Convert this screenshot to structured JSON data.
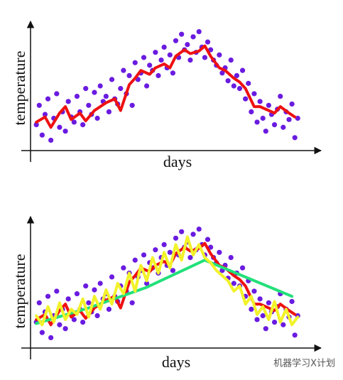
{
  "chart_data": [
    {
      "type": "scatter",
      "xlabel": "days",
      "ylabel": "temperature",
      "xlim": [
        0,
        100
      ],
      "ylim": [
        0,
        100
      ],
      "series": [
        {
          "type": "scatter",
          "color": "#6a1be0",
          "x": [
            2,
            3,
            4,
            5,
            6,
            7,
            8,
            9,
            10,
            11,
            12,
            13,
            14,
            15,
            16,
            17,
            18,
            19,
            20,
            21,
            22,
            23,
            24,
            25,
            26,
            27,
            28,
            29,
            30,
            31,
            32,
            33,
            34,
            35,
            36,
            37,
            38,
            39,
            40,
            41,
            42,
            43,
            44,
            45,
            46,
            47,
            48,
            49,
            50,
            51,
            52,
            53,
            54,
            55,
            56,
            57,
            58,
            59,
            60,
            61,
            62,
            63,
            64,
            65,
            66,
            67,
            68,
            69,
            70,
            71,
            72,
            73,
            74,
            75,
            76,
            77,
            78,
            79,
            80,
            81,
            82,
            83,
            84,
            85,
            86,
            87,
            88,
            89,
            90,
            91,
            92
          ],
          "values": [
            20,
            35,
            12,
            28,
            40,
            8,
            25,
            44,
            18,
            30,
            15,
            38,
            26,
            22,
            42,
            30,
            20,
            48,
            35,
            28,
            45,
            25,
            50,
            38,
            42,
            30,
            55,
            40,
            36,
            48,
            62,
            44,
            58,
            35,
            68,
            55,
            60,
            72,
            50,
            66,
            62,
            76,
            58,
            70,
            80,
            64,
            74,
            60,
            85,
            72,
            90,
            78,
            82,
            70,
            88,
            76,
            92,
            80,
            72,
            84,
            78,
            70,
            66,
            74,
            60,
            64,
            54,
            70,
            50,
            58,
            48,
            62,
            40,
            52,
            30,
            44,
            22,
            38,
            25,
            15,
            35,
            28,
            20,
            32,
            42,
            18,
            30,
            24,
            36,
            10,
            25
          ]
        },
        {
          "type": "line",
          "color": "#ee1111",
          "x": [
            2,
            5,
            7,
            10,
            12,
            14,
            17,
            19,
            22,
            24,
            26,
            29,
            31,
            34,
            36,
            38,
            41,
            43,
            46,
            48,
            50,
            53,
            55,
            58,
            60,
            62,
            65,
            67,
            70,
            72,
            74,
            77,
            79,
            82,
            84,
            86,
            89,
            91
          ],
          "values": [
            22,
            26,
            18,
            29,
            34,
            24,
            29,
            23,
            31,
            34,
            37,
            40,
            31,
            51,
            56,
            62,
            59,
            64,
            67,
            64,
            73,
            78,
            75,
            77,
            81,
            73,
            64,
            62,
            56,
            53,
            48,
            34,
            34,
            31,
            29,
            34,
            29,
            26
          ]
        }
      ]
    },
    {
      "type": "scatter",
      "xlabel": "days",
      "ylabel": "temperature",
      "xlim": [
        0,
        100
      ],
      "ylim": [
        0,
        100
      ],
      "series": [
        {
          "type": "scatter",
          "color": "#6a1be0",
          "x": [
            2,
            3,
            4,
            5,
            6,
            7,
            8,
            9,
            10,
            11,
            12,
            13,
            14,
            15,
            16,
            17,
            18,
            19,
            20,
            21,
            22,
            23,
            24,
            25,
            26,
            27,
            28,
            29,
            30,
            31,
            32,
            33,
            34,
            35,
            36,
            37,
            38,
            39,
            40,
            41,
            42,
            43,
            44,
            45,
            46,
            47,
            48,
            49,
            50,
            51,
            52,
            53,
            54,
            55,
            56,
            57,
            58,
            59,
            60,
            61,
            62,
            63,
            64,
            65,
            66,
            67,
            68,
            69,
            70,
            71,
            72,
            73,
            74,
            75,
            76,
            77,
            78,
            79,
            80,
            81,
            82,
            83,
            84,
            85,
            86,
            87,
            88,
            89,
            90,
            91,
            92
          ],
          "values": [
            20,
            35,
            12,
            28,
            40,
            8,
            25,
            44,
            18,
            30,
            15,
            38,
            26,
            22,
            42,
            30,
            20,
            48,
            35,
            28,
            45,
            25,
            50,
            38,
            42,
            30,
            55,
            40,
            36,
            48,
            62,
            44,
            58,
            35,
            68,
            55,
            60,
            72,
            50,
            66,
            62,
            76,
            58,
            70,
            80,
            64,
            74,
            60,
            85,
            72,
            90,
            78,
            82,
            70,
            88,
            76,
            92,
            80,
            72,
            84,
            78,
            70,
            66,
            74,
            60,
            64,
            54,
            70,
            50,
            58,
            48,
            62,
            40,
            52,
            30,
            44,
            22,
            38,
            25,
            15,
            35,
            28,
            20,
            32,
            42,
            18,
            30,
            24,
            36,
            10,
            25
          ]
        },
        {
          "type": "line",
          "color": "#ee1111",
          "x": [
            2,
            5,
            7,
            10,
            12,
            14,
            17,
            19,
            22,
            24,
            26,
            29,
            31,
            34,
            36,
            38,
            41,
            43,
            46,
            48,
            50,
            53,
            55,
            58,
            60,
            62,
            65,
            67,
            70,
            72,
            74,
            77,
            79,
            82,
            84,
            86,
            89,
            91
          ],
          "values": [
            22,
            26,
            18,
            29,
            34,
            24,
            29,
            23,
            31,
            34,
            37,
            40,
            31,
            51,
            56,
            62,
            59,
            64,
            67,
            64,
            73,
            78,
            75,
            77,
            81,
            73,
            64,
            62,
            56,
            53,
            48,
            34,
            34,
            31,
            29,
            34,
            29,
            26
          ]
        },
        {
          "type": "line",
          "color": "#22e07a",
          "x": [
            2,
            20,
            40,
            60,
            75,
            90
          ],
          "values": [
            19,
            31,
            47,
            68,
            54,
            40
          ]
        },
        {
          "type": "line",
          "color": "#f2f22a",
          "x": [
            2,
            4,
            6,
            8,
            10,
            12,
            14,
            16,
            18,
            20,
            22,
            24,
            26,
            28,
            30,
            32,
            34,
            36,
            38,
            40,
            42,
            44,
            46,
            48,
            50,
            52,
            54,
            56,
            58,
            60,
            62,
            64,
            66,
            68,
            70,
            72,
            74,
            76,
            78,
            80,
            82,
            84,
            86,
            88,
            90,
            92
          ],
          "values": [
            25,
            18,
            32,
            20,
            35,
            22,
            30,
            26,
            38,
            24,
            40,
            30,
            45,
            34,
            50,
            42,
            58,
            44,
            64,
            52,
            70,
            58,
            74,
            62,
            80,
            68,
            86,
            72,
            80,
            70,
            66,
            60,
            56,
            52,
            44,
            48,
            34,
            40,
            26,
            32,
            22,
            36,
            20,
            30,
            18,
            24
          ]
        }
      ]
    }
  ],
  "watermark": "机器学习X计划"
}
